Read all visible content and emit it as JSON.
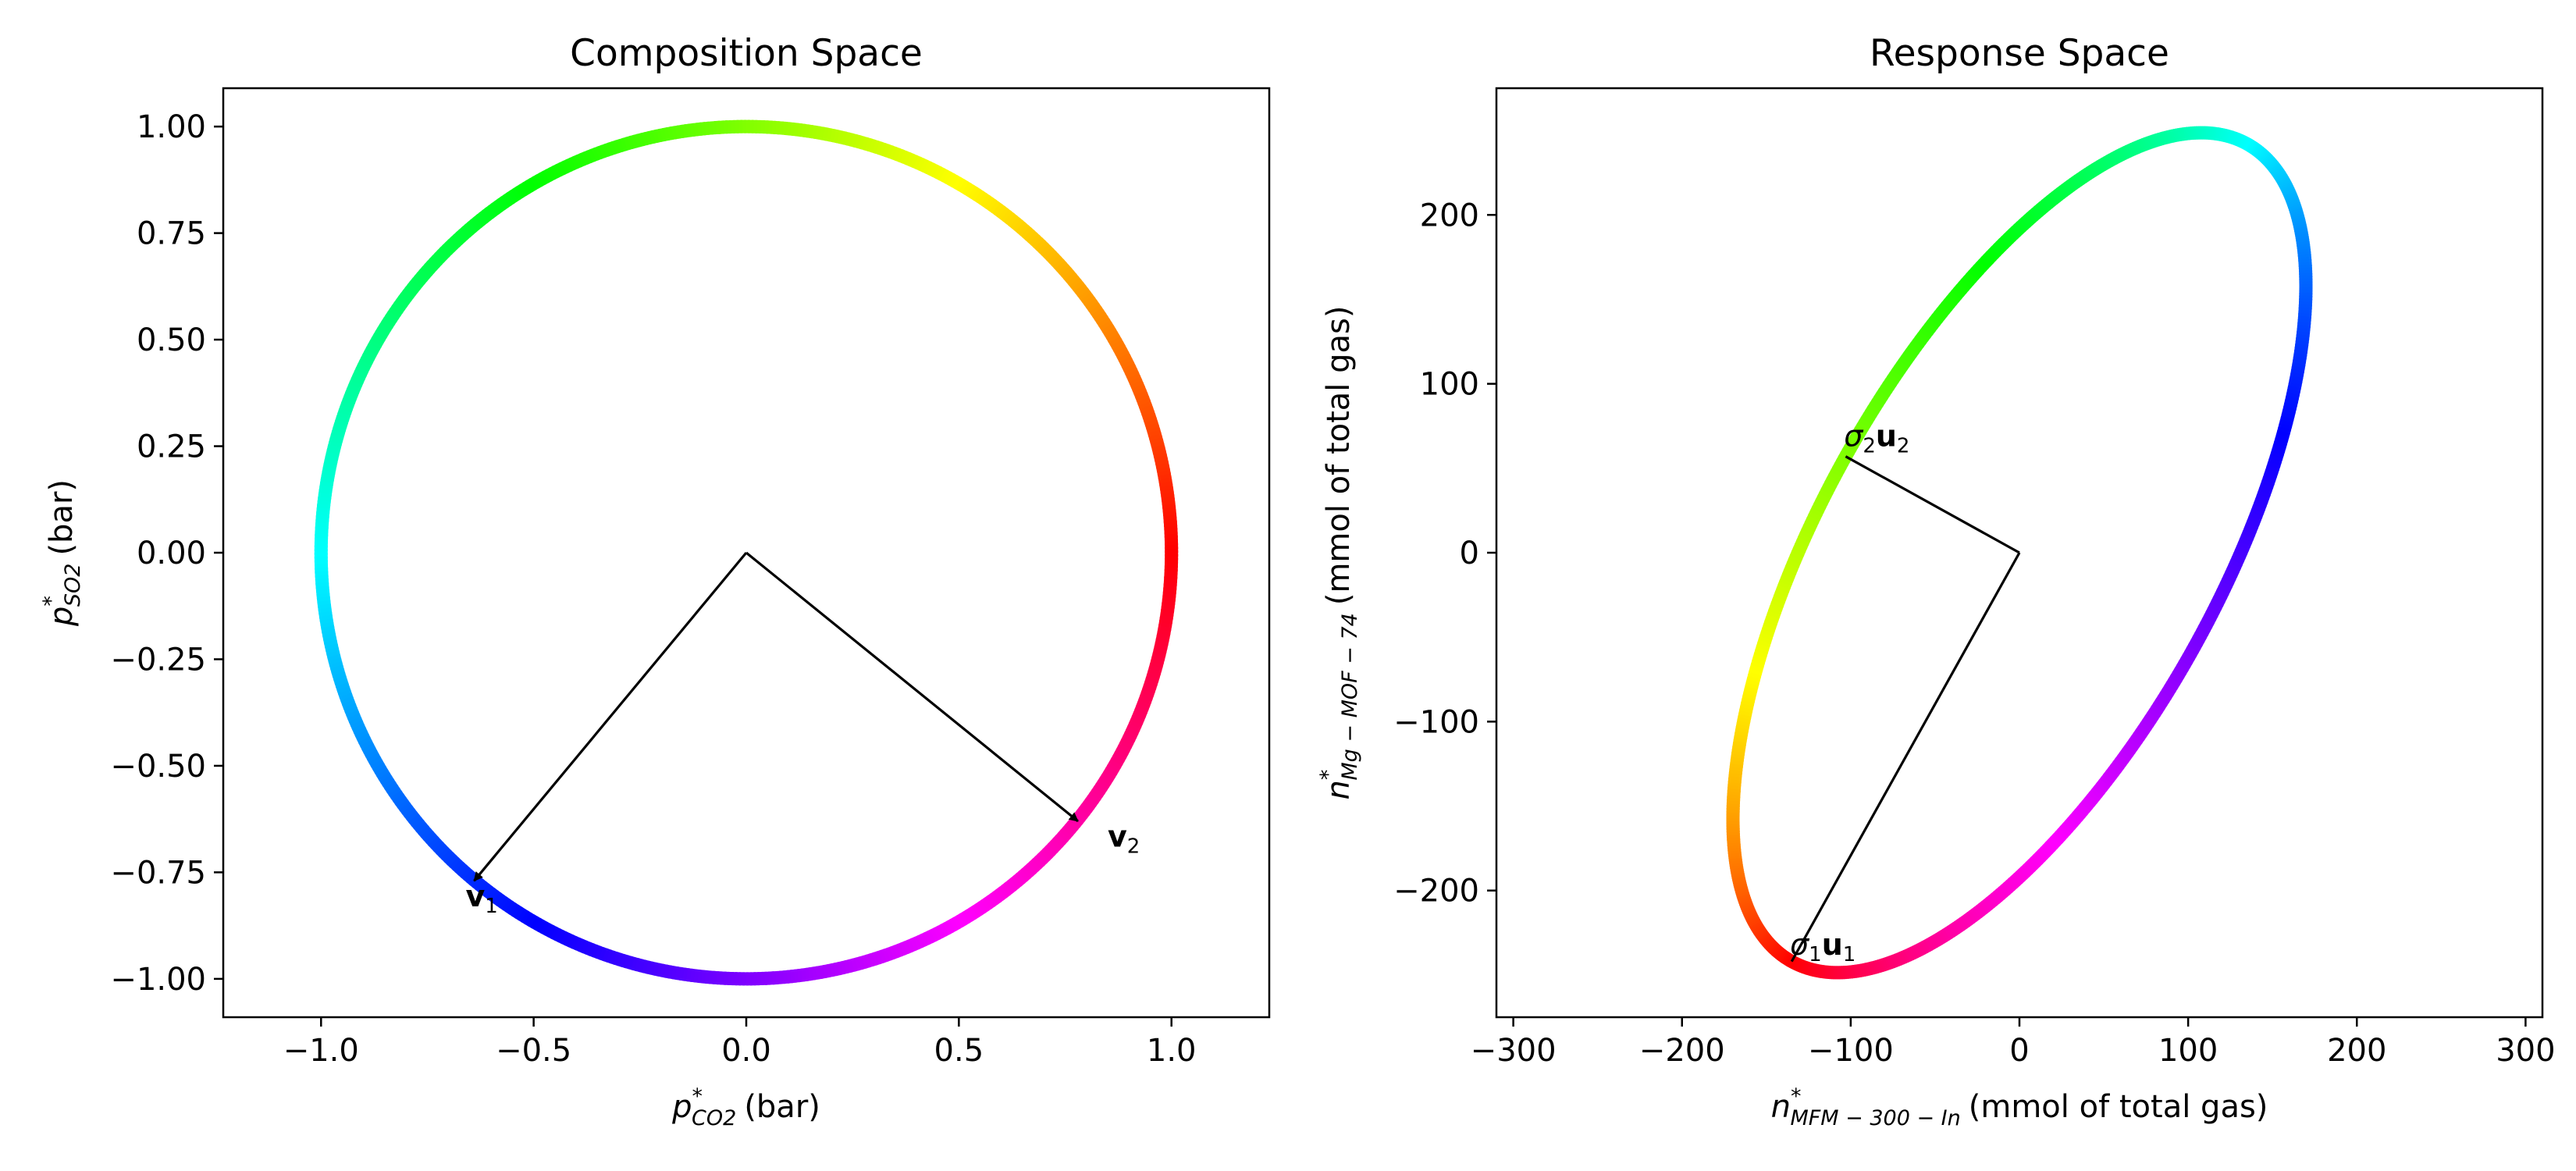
{
  "chart_data": [
    {
      "type": "line",
      "title": "Composition Space",
      "xlabel": {
        "var": "p",
        "sub": "CO2",
        "unit": "(bar)"
      },
      "ylabel": {
        "var": "p",
        "sub": "SO2",
        "unit": "(bar)"
      },
      "xlim": [
        -1.23,
        1.23
      ],
      "ylim": [
        -1.09,
        1.09
      ],
      "xticks": [
        -1.0,
        -0.5,
        0.0,
        0.5,
        1.0
      ],
      "xtick_labels": [
        "−1.0",
        "−0.5",
        "0.0",
        "0.5",
        "1.0"
      ],
      "yticks": [
        1.0,
        0.75,
        0.5,
        0.25,
        0.0,
        -0.25,
        -0.5,
        -0.75,
        -1.0
      ],
      "ytick_labels": [
        "1.00",
        "0.75",
        "0.50",
        "0.25",
        "0.00",
        "−0.25",
        "−0.50",
        "−0.75",
        "−1.00"
      ],
      "grid": false,
      "curve": {
        "shape": "unit circle",
        "center": [
          0,
          0
        ],
        "radius": 1.0,
        "color_map": "hue by angle"
      },
      "arrows": [
        {
          "name": "v1",
          "from": [
            0,
            0
          ],
          "to": [
            -0.64,
            -0.77
          ],
          "label_var": "v",
          "label_sub": "1",
          "label_at": [
            -0.66,
            -0.83
          ]
        },
        {
          "name": "v2",
          "from": [
            0,
            0
          ],
          "to": [
            0.78,
            -0.63
          ],
          "label_var": "v",
          "label_sub": "2",
          "label_at": [
            0.85,
            -0.69
          ]
        }
      ]
    },
    {
      "type": "line",
      "title": "Response Space",
      "xlabel": {
        "var": "n",
        "sub": "MFM − 300 − In",
        "unit": "(mmol of total gas)"
      },
      "ylabel": {
        "var": "n",
        "sub": "Mg − MOF − 74",
        "unit": "(mmol of total gas)"
      },
      "xlim": [
        -310,
        310
      ],
      "ylim": [
        -275,
        275
      ],
      "xticks": [
        -300,
        -200,
        -100,
        0,
        100,
        200,
        300
      ],
      "xtick_labels": [
        "−300",
        "−200",
        "−100",
        "0",
        "100",
        "200",
        "300"
      ],
      "yticks": [
        200,
        100,
        0,
        -100,
        -200
      ],
      "ytick_labels": [
        "200",
        "100",
        "0",
        "−100",
        "−200"
      ],
      "grid": false,
      "curve": {
        "shape": "ellipse",
        "center": [
          0,
          0
        ],
        "vertex_1": [
          -135,
          -242
        ],
        "vertex_2": [
          -103,
          57
        ],
        "color_map": "hue by angle"
      },
      "arrows": [
        {
          "name": "sigma1-u1",
          "from": [
            0,
            0
          ],
          "to": [
            -135,
            -242
          ],
          "label_var": "σ",
          "label_sub": "1",
          "label_vec": "u",
          "label_vec_sub": "1",
          "label_at": [
            -136,
            -238
          ]
        },
        {
          "name": "sigma2-u2",
          "from": [
            0,
            0
          ],
          "to": [
            -103,
            57
          ],
          "label_var": "σ",
          "label_sub": "2",
          "label_vec": "u",
          "label_vec_sub": "2",
          "label_at": [
            -104,
            63
          ]
        }
      ]
    }
  ]
}
